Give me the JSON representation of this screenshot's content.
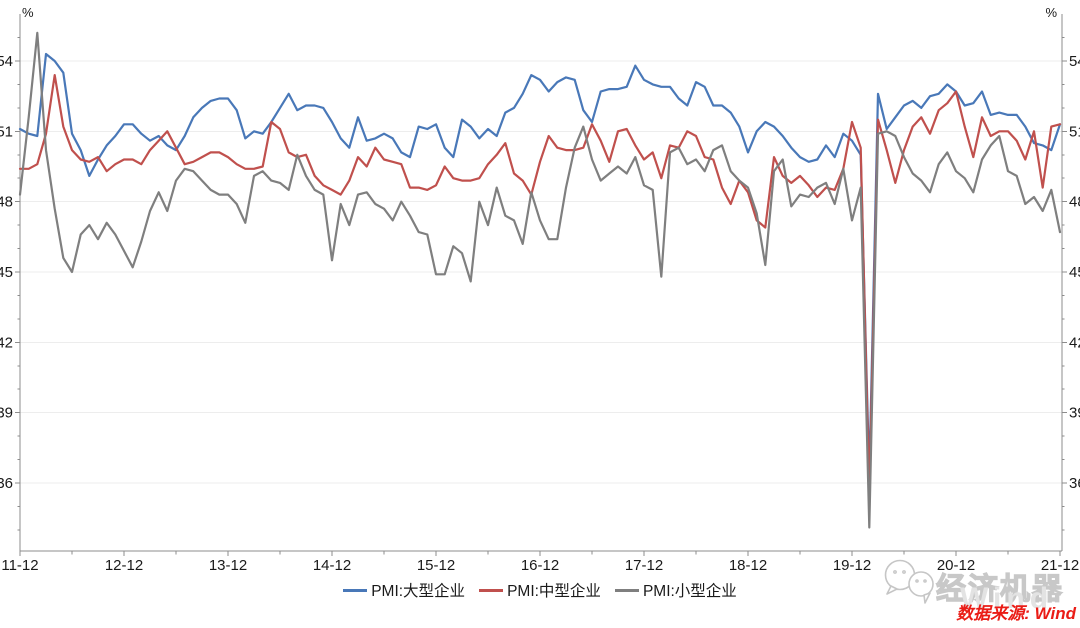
{
  "chart_data": {
    "type": "line",
    "title": "",
    "unit_left": "%",
    "unit_right": "%",
    "x_tick_labels": [
      "11-12",
      "12-12",
      "13-12",
      "14-12",
      "15-12",
      "16-12",
      "17-12",
      "18-12",
      "19-12",
      "20-12",
      "21-12"
    ],
    "x_frequency": "monthly",
    "x_range": "2011-12 to 2021-12",
    "yticks": [
      36,
      39,
      42,
      45,
      48,
      51,
      54
    ],
    "ylim": [
      33.1,
      56.0
    ],
    "grid": "horizontal-only",
    "legend_position": "bottom-center",
    "axis_color": "#8c8c8c",
    "gridline_color": "#ededed",
    "series": [
      {
        "name": "PMI:大型企业",
        "color": "#4978b8",
        "values": [
          51.1,
          50.9,
          50.8,
          54.3,
          54.0,
          53.5,
          50.9,
          50.2,
          49.1,
          49.8,
          50.4,
          50.8,
          51.3,
          51.3,
          50.9,
          50.6,
          50.8,
          50.4,
          50.2,
          50.8,
          51.6,
          52.0,
          52.3,
          52.4,
          52.4,
          51.9,
          50.7,
          51.0,
          50.9,
          51.4,
          52.0,
          52.6,
          51.9,
          52.1,
          52.1,
          52.0,
          51.4,
          50.7,
          50.3,
          51.6,
          50.6,
          50.7,
          50.9,
          50.7,
          50.1,
          49.9,
          51.2,
          51.1,
          51.3,
          50.3,
          49.9,
          51.5,
          51.2,
          50.7,
          51.1,
          50.8,
          51.8,
          52.0,
          52.6,
          53.4,
          53.2,
          52.7,
          53.1,
          53.3,
          53.2,
          51.9,
          51.4,
          52.7,
          52.8,
          52.8,
          52.9,
          53.8,
          53.2,
          53.0,
          52.9,
          52.9,
          52.4,
          52.1,
          53.1,
          52.9,
          52.1,
          52.1,
          51.8,
          51.2,
          50.1,
          51.0,
          51.4,
          51.2,
          50.8,
          50.3,
          49.9,
          49.7,
          49.8,
          50.4,
          49.9,
          50.9,
          50.6,
          50.0,
          36.3,
          52.6,
          51.1,
          51.6,
          52.1,
          52.3,
          52.0,
          52.5,
          52.6,
          53.0,
          52.7,
          52.1,
          52.2,
          52.7,
          51.7,
          51.8,
          51.7,
          51.7,
          51.2,
          50.5,
          50.4,
          50.2,
          51.3
        ]
      },
      {
        "name": "PMI:中型企业",
        "color": "#c0504d",
        "values": [
          49.4,
          49.4,
          49.6,
          50.9,
          53.4,
          51.2,
          50.2,
          49.8,
          49.7,
          49.9,
          49.3,
          49.6,
          49.8,
          49.8,
          49.6,
          50.2,
          50.6,
          51.0,
          50.3,
          49.6,
          49.7,
          49.9,
          50.1,
          50.1,
          49.9,
          49.6,
          49.4,
          49.4,
          49.5,
          51.4,
          51.1,
          50.1,
          49.9,
          50.0,
          49.1,
          48.7,
          48.5,
          48.3,
          48.9,
          49.9,
          49.5,
          50.3,
          49.8,
          49.7,
          49.6,
          48.6,
          48.6,
          48.5,
          48.7,
          49.5,
          49.0,
          48.9,
          48.9,
          49.0,
          49.6,
          50.0,
          50.5,
          49.2,
          48.9,
          48.3,
          49.7,
          50.8,
          50.3,
          50.2,
          50.2,
          50.3,
          51.3,
          50.6,
          49.7,
          51.0,
          51.1,
          50.4,
          49.8,
          50.1,
          49.0,
          50.4,
          50.3,
          51.0,
          50.8,
          49.9,
          49.8,
          48.6,
          47.9,
          48.9,
          48.4,
          47.2,
          46.9,
          49.9,
          49.1,
          48.8,
          49.1,
          48.7,
          48.2,
          48.6,
          48.5,
          49.4,
          51.4,
          50.3,
          35.5,
          51.5,
          50.2,
          48.8,
          50.2,
          51.2,
          51.6,
          50.9,
          51.9,
          52.2,
          52.7,
          51.2,
          49.9,
          51.6,
          50.8,
          51.0,
          51.0,
          50.6,
          49.8,
          51.0,
          48.6,
          51.2,
          51.3
        ]
      },
      {
        "name": "PMI:小型企业",
        "color": "#7f7f7f",
        "values": [
          48.3,
          51.6,
          55.2,
          50.2,
          47.7,
          45.6,
          45.0,
          46.6,
          47.0,
          46.4,
          47.1,
          46.6,
          45.9,
          45.2,
          46.3,
          47.6,
          48.4,
          47.6,
          48.9,
          49.4,
          49.3,
          48.9,
          48.5,
          48.3,
          48.3,
          47.9,
          47.1,
          49.1,
          49.3,
          48.9,
          48.8,
          48.5,
          50.0,
          49.1,
          48.5,
          48.3,
          45.5,
          47.9,
          47.0,
          48.3,
          48.4,
          47.9,
          47.7,
          47.2,
          48.0,
          47.4,
          46.7,
          46.6,
          44.9,
          44.9,
          46.1,
          45.8,
          44.6,
          48.0,
          47.0,
          48.6,
          47.4,
          47.2,
          46.2,
          48.4,
          47.2,
          46.4,
          46.4,
          48.6,
          50.3,
          51.2,
          49.8,
          48.9,
          49.2,
          49.5,
          49.2,
          49.9,
          48.7,
          48.5,
          44.8,
          50.1,
          50.3,
          49.6,
          49.8,
          49.3,
          50.2,
          50.4,
          49.3,
          48.9,
          48.6,
          47.5,
          45.3,
          49.3,
          49.8,
          47.8,
          48.3,
          48.2,
          48.6,
          48.8,
          47.9,
          49.4,
          47.2,
          48.6,
          34.1,
          50.9,
          51.0,
          50.8,
          49.9,
          49.2,
          48.9,
          48.4,
          49.6,
          50.1,
          49.3,
          49.0,
          48.4,
          49.8,
          50.4,
          50.8,
          49.3,
          49.1,
          47.9,
          48.2,
          47.6,
          48.5,
          46.7
        ]
      }
    ]
  },
  "watermark": {
    "brand": "经济机器",
    "logo": "wechat-icon",
    "ghost_text": "Wind"
  },
  "source_note": "数据来源: Wind"
}
